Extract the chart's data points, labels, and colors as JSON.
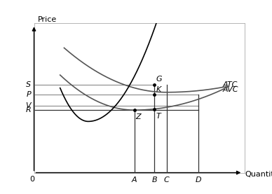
{
  "xlabel": "Quantity",
  "ylabel": "Price",
  "background_color": "#ffffff",
  "curve_color_mc": "#000000",
  "curve_color_atc": "#555555",
  "curve_color_avc": "#555555",
  "line_color": "#888888",
  "price_labels": [
    "S",
    "P",
    "V",
    "R"
  ],
  "price_values": [
    0.62,
    0.55,
    0.47,
    0.44
  ],
  "qty_labels": [
    "A",
    "B",
    "C",
    "D"
  ],
  "qty_values": [
    0.5,
    0.6,
    0.66,
    0.82
  ],
  "xlim": [
    0,
    1.05
  ],
  "ylim": [
    0,
    1.05
  ],
  "label_fontsize": 8,
  "axis_fontsize": 8,
  "tick_fontsize": 8
}
